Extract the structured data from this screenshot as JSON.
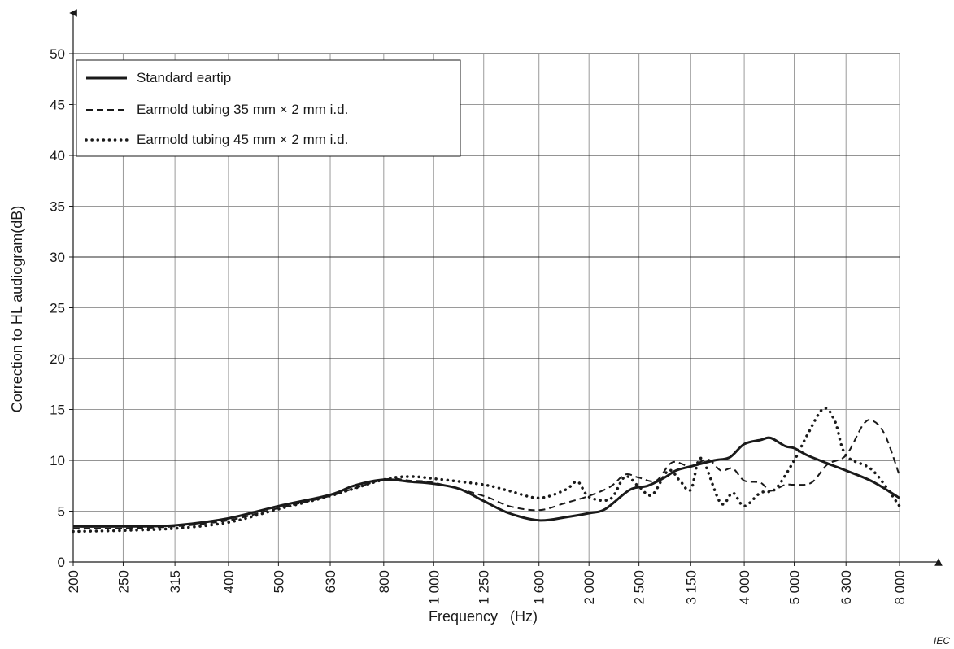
{
  "chart_data": {
    "type": "line",
    "title": "",
    "xlabel": "Frequency   (Hz)",
    "ylabel": "Correction to HL audiogram(dB)",
    "x_scale": "log",
    "xlim": [
      200,
      8000
    ],
    "ylim": [
      0,
      50
    ],
    "grid": true,
    "legend_position": "top-left",
    "x_ticks": [
      {
        "value": 200,
        "label": "200"
      },
      {
        "value": 250,
        "label": "250"
      },
      {
        "value": 315,
        "label": "315"
      },
      {
        "value": 400,
        "label": "400"
      },
      {
        "value": 500,
        "label": "500"
      },
      {
        "value": 630,
        "label": "630"
      },
      {
        "value": 800,
        "label": "800"
      },
      {
        "value": 1000,
        "label": "1 000"
      },
      {
        "value": 1250,
        "label": "1 250"
      },
      {
        "value": 1600,
        "label": "1 600"
      },
      {
        "value": 2000,
        "label": "2 000"
      },
      {
        "value": 2500,
        "label": "2 500"
      },
      {
        "value": 3150,
        "label": "3 150"
      },
      {
        "value": 4000,
        "label": "4 000"
      },
      {
        "value": 5000,
        "label": "5 000"
      },
      {
        "value": 6300,
        "label": "6 300"
      },
      {
        "value": 8000,
        "label": "8 000"
      }
    ],
    "y_ticks": [
      0,
      5,
      10,
      15,
      20,
      25,
      30,
      35,
      40,
      45,
      50
    ],
    "series": [
      {
        "name": "Standard eartip",
        "style": "solid",
        "points": [
          [
            200,
            3.5
          ],
          [
            250,
            3.5
          ],
          [
            315,
            3.6
          ],
          [
            400,
            4.3
          ],
          [
            500,
            5.5
          ],
          [
            630,
            6.6
          ],
          [
            700,
            7.5
          ],
          [
            800,
            8.1
          ],
          [
            900,
            7.9
          ],
          [
            1000,
            7.7
          ],
          [
            1120,
            7.2
          ],
          [
            1250,
            6.0
          ],
          [
            1400,
            4.8
          ],
          [
            1600,
            4.1
          ],
          [
            1800,
            4.4
          ],
          [
            2000,
            4.8
          ],
          [
            2150,
            5.2
          ],
          [
            2400,
            7.1
          ],
          [
            2600,
            7.5
          ],
          [
            2800,
            8.3
          ],
          [
            2950,
            9.0
          ],
          [
            3150,
            9.4
          ],
          [
            3500,
            10.0
          ],
          [
            3750,
            10.3
          ],
          [
            4000,
            11.6
          ],
          [
            4300,
            12.0
          ],
          [
            4500,
            12.2
          ],
          [
            4800,
            11.4
          ],
          [
            5000,
            11.2
          ],
          [
            5300,
            10.5
          ],
          [
            5800,
            9.7
          ],
          [
            6300,
            9.0
          ],
          [
            7100,
            7.9
          ],
          [
            8000,
            6.3
          ]
        ]
      },
      {
        "name": "Earmold tubing 35 mm × 2 mm i.d.",
        "style": "dashed",
        "points": [
          [
            200,
            3.3
          ],
          [
            250,
            3.3
          ],
          [
            315,
            3.5
          ],
          [
            400,
            4.1
          ],
          [
            500,
            5.3
          ],
          [
            630,
            6.5
          ],
          [
            800,
            8.1
          ],
          [
            900,
            8.0
          ],
          [
            1000,
            7.8
          ],
          [
            1250,
            6.5
          ],
          [
            1400,
            5.5
          ],
          [
            1600,
            5.1
          ],
          [
            1800,
            5.8
          ],
          [
            2000,
            6.5
          ],
          [
            2200,
            7.4
          ],
          [
            2350,
            8.6
          ],
          [
            2500,
            8.3
          ],
          [
            2700,
            8.0
          ],
          [
            2900,
            9.8
          ],
          [
            3150,
            9.4
          ],
          [
            3400,
            10.1
          ],
          [
            3600,
            9.0
          ],
          [
            3800,
            9.2
          ],
          [
            4000,
            8.0
          ],
          [
            4300,
            7.8
          ],
          [
            4500,
            7.0
          ],
          [
            4800,
            7.6
          ],
          [
            5000,
            7.6
          ],
          [
            5400,
            7.8
          ],
          [
            5800,
            9.6
          ],
          [
            6300,
            10.5
          ],
          [
            6800,
            13.5
          ],
          [
            7100,
            13.9
          ],
          [
            7500,
            12.5
          ],
          [
            8000,
            8.5
          ]
        ]
      },
      {
        "name": "Earmold tubing 45 mm × 2 mm i.d.",
        "style": "dotted",
        "points": [
          [
            200,
            3.0
          ],
          [
            250,
            3.1
          ],
          [
            315,
            3.3
          ],
          [
            400,
            3.9
          ],
          [
            500,
            5.2
          ],
          [
            630,
            6.5
          ],
          [
            800,
            8.1
          ],
          [
            900,
            8.4
          ],
          [
            1000,
            8.2
          ],
          [
            1250,
            7.6
          ],
          [
            1400,
            7.0
          ],
          [
            1600,
            6.3
          ],
          [
            1800,
            7.1
          ],
          [
            1900,
            7.9
          ],
          [
            2000,
            6.4
          ],
          [
            2200,
            6.2
          ],
          [
            2350,
            8.4
          ],
          [
            2500,
            7.4
          ],
          [
            2650,
            6.6
          ],
          [
            2850,
            9.0
          ],
          [
            3000,
            8.0
          ],
          [
            3150,
            7.1
          ],
          [
            3300,
            10.2
          ],
          [
            3600,
            5.8
          ],
          [
            3800,
            6.8
          ],
          [
            4000,
            5.5
          ],
          [
            4300,
            6.8
          ],
          [
            4600,
            7.2
          ],
          [
            5000,
            10.0
          ],
          [
            5300,
            12.5
          ],
          [
            5700,
            15.1
          ],
          [
            6000,
            13.8
          ],
          [
            6300,
            10.5
          ],
          [
            7100,
            9.0
          ],
          [
            8000,
            5.5
          ]
        ]
      }
    ]
  },
  "watermark": "IEC"
}
